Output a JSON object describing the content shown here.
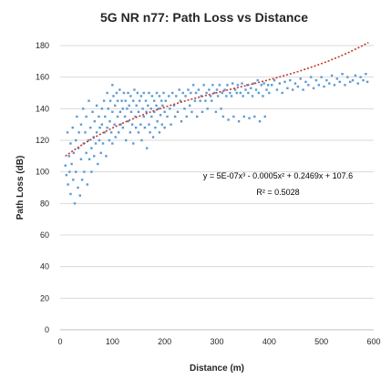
{
  "chart_data": {
    "type": "scatter",
    "title": "5G NR n77: Path Loss vs Distance",
    "xlabel": "Distance (m)",
    "ylabel": "Path Loss (dB)",
    "xlim": [
      0,
      600
    ],
    "ylim": [
      0,
      180
    ],
    "xticks": [
      0,
      100,
      200,
      300,
      400,
      500,
      600
    ],
    "yticks": [
      0,
      20,
      40,
      60,
      80,
      100,
      120,
      140,
      160,
      180
    ],
    "xtick_labels": [
      "0",
      "100",
      "200",
      "300",
      "400",
      "500",
      "600"
    ],
    "ytick_labels": [
      "0",
      "20",
      "40",
      "60",
      "80",
      "100",
      "120",
      "140",
      "160",
      "180"
    ],
    "grid": "horizontal",
    "legend": "none",
    "point_color": "#5b9bd5",
    "trend_color": "#c0392b",
    "series": [
      {
        "points": [
          [
            10,
            104
          ],
          [
            12,
            98
          ],
          [
            14,
            125
          ],
          [
            15,
            92
          ],
          [
            17,
            110
          ],
          [
            18,
            100
          ],
          [
            20,
            86
          ],
          [
            20,
            118
          ],
          [
            22,
            105
          ],
          [
            24,
            128
          ],
          [
            25,
            95
          ],
          [
            26,
            112
          ],
          [
            28,
            80
          ],
          [
            30,
            120
          ],
          [
            30,
            100
          ],
          [
            32,
            135
          ],
          [
            34,
            90
          ],
          [
            35,
            115
          ],
          [
            36,
            125
          ],
          [
            38,
            85
          ],
          [
            40,
            108
          ],
          [
            40,
            130
          ],
          [
            42,
            95
          ],
          [
            44,
            140
          ],
          [
            45,
            118
          ],
          [
            46,
            100
          ],
          [
            48,
            125
          ],
          [
            50,
            112
          ],
          [
            50,
            135
          ],
          [
            52,
            92
          ],
          [
            54,
            120
          ],
          [
            55,
            145
          ],
          [
            56,
            108
          ],
          [
            58,
            128
          ],
          [
            60,
            115
          ],
          [
            60,
            100
          ],
          [
            62,
            138
          ],
          [
            64,
            122
          ],
          [
            65,
            110
          ],
          [
            66,
            132
          ],
          [
            68,
            118
          ],
          [
            70,
            142
          ],
          [
            70,
            125
          ],
          [
            72,
            105
          ],
          [
            74,
            135
          ],
          [
            75,
            120
          ],
          [
            76,
            128
          ],
          [
            78,
            112
          ],
          [
            80,
            140
          ],
          [
            80,
            130
          ],
          [
            82,
            118
          ],
          [
            84,
            145
          ],
          [
            85,
            125
          ],
          [
            86,
            135
          ],
          [
            88,
            110
          ],
          [
            90,
            150
          ],
          [
            90,
            128
          ],
          [
            92,
            140
          ],
          [
            94,
            120
          ],
          [
            95,
            132
          ],
          [
            96,
            145
          ],
          [
            98,
            125
          ],
          [
            100,
            155
          ],
          [
            100,
            138
          ],
          [
            100,
            118
          ],
          [
            102,
            148
          ],
          [
            104,
            130
          ],
          [
            105,
            142
          ],
          [
            106,
            122
          ],
          [
            108,
            150
          ],
          [
            110,
            135
          ],
          [
            110,
            145
          ],
          [
            112,
            125
          ],
          [
            114,
            152
          ],
          [
            115,
            138
          ],
          [
            116,
            130
          ],
          [
            118,
            145
          ],
          [
            120,
            140
          ],
          [
            120,
            128
          ],
          [
            122,
            150
          ],
          [
            124,
            135
          ],
          [
            125,
            145
          ],
          [
            126,
            120
          ],
          [
            128,
            140
          ],
          [
            130,
            132
          ],
          [
            130,
            150
          ],
          [
            132,
            142
          ],
          [
            134,
            125
          ],
          [
            135,
            148
          ],
          [
            136,
            138
          ],
          [
            138,
            130
          ],
          [
            140,
            145
          ],
          [
            140,
            118
          ],
          [
            142,
            152
          ],
          [
            144,
            135
          ],
          [
            145,
            128
          ],
          [
            146,
            142
          ],
          [
            148,
            150
          ],
          [
            150,
            138
          ],
          [
            150,
            125
          ],
          [
            152,
            145
          ],
          [
            154,
            130
          ],
          [
            155,
            148
          ],
          [
            156,
            120
          ],
          [
            158,
            140
          ],
          [
            160,
            135
          ],
          [
            160,
            150
          ],
          [
            162,
            128
          ],
          [
            164,
            145
          ],
          [
            165,
            138
          ],
          [
            166,
            115
          ],
          [
            168,
            142
          ],
          [
            170,
            130
          ],
          [
            170,
            150
          ],
          [
            172,
            125
          ],
          [
            174,
            140
          ],
          [
            175,
            135
          ],
          [
            176,
            148
          ],
          [
            178,
            122
          ],
          [
            180,
            138
          ],
          [
            180,
            145
          ],
          [
            182,
            128
          ],
          [
            184,
            142
          ],
          [
            185,
            150
          ],
          [
            186,
            132
          ],
          [
            188,
            140
          ],
          [
            190,
            125
          ],
          [
            190,
            148
          ],
          [
            192,
            136
          ],
          [
            194,
            145
          ],
          [
            195,
            130
          ],
          [
            196,
            142
          ],
          [
            198,
            150
          ],
          [
            200,
            138
          ],
          [
            200,
            128
          ],
          [
            202,
            145
          ],
          [
            205,
            135
          ],
          [
            208,
            148
          ],
          [
            210,
            140
          ],
          [
            212,
            130
          ],
          [
            215,
            150
          ],
          [
            218,
            142
          ],
          [
            220,
            135
          ],
          [
            222,
            148
          ],
          [
            225,
            138
          ],
          [
            228,
            152
          ],
          [
            230,
            145
          ],
          [
            232,
            132
          ],
          [
            235,
            150
          ],
          [
            238,
            140
          ],
          [
            240,
            148
          ],
          [
            242,
            135
          ],
          [
            245,
            152
          ],
          [
            248,
            142
          ],
          [
            250,
            150
          ],
          [
            252,
            138
          ],
          [
            255,
            155
          ],
          [
            258,
            145
          ],
          [
            260,
            150
          ],
          [
            262,
            135
          ],
          [
            265,
            152
          ],
          [
            268,
            145
          ],
          [
            270,
            148
          ],
          [
            272,
            138
          ],
          [
            275,
            155
          ],
          [
            278,
            145
          ],
          [
            280,
            150
          ],
          [
            282,
            140
          ],
          [
            285,
            152
          ],
          [
            288,
            148
          ],
          [
            290,
            145
          ],
          [
            292,
            155
          ],
          [
            295,
            150
          ],
          [
            298,
            138
          ],
          [
            300,
            152
          ],
          [
            302,
            148
          ],
          [
            305,
            155
          ],
          [
            308,
            140
          ],
          [
            310,
            150
          ],
          [
            312,
            135
          ],
          [
            315,
            152
          ],
          [
            318,
            148
          ],
          [
            320,
            155
          ],
          [
            322,
            133
          ],
          [
            325,
            150
          ],
          [
            328,
            148
          ],
          [
            330,
            156
          ],
          [
            332,
            135
          ],
          [
            335,
            152
          ],
          [
            338,
            150
          ],
          [
            340,
            155
          ],
          [
            342,
            132
          ],
          [
            345,
            150
          ],
          [
            348,
            156
          ],
          [
            350,
            148
          ],
          [
            352,
            135
          ],
          [
            355,
            152
          ],
          [
            358,
            155
          ],
          [
            360,
            150
          ],
          [
            362,
            134
          ],
          [
            365,
            153
          ],
          [
            368,
            148
          ],
          [
            370,
            156
          ],
          [
            372,
            135
          ],
          [
            375,
            152
          ],
          [
            378,
            158
          ],
          [
            380,
            150
          ],
          [
            382,
            132
          ],
          [
            385,
            155
          ],
          [
            388,
            148
          ],
          [
            390,
            156
          ],
          [
            392,
            135
          ],
          [
            395,
            152
          ],
          [
            398,
            155
          ],
          [
            400,
            150
          ],
          [
            405,
            155
          ],
          [
            410,
            158
          ],
          [
            415,
            152
          ],
          [
            420,
            156
          ],
          [
            425,
            150
          ],
          [
            430,
            157
          ],
          [
            435,
            153
          ],
          [
            440,
            158
          ],
          [
            445,
            152
          ],
          [
            450,
            156
          ],
          [
            455,
            154
          ],
          [
            460,
            159
          ],
          [
            465,
            152
          ],
          [
            470,
            157
          ],
          [
            475,
            155
          ],
          [
            480,
            160
          ],
          [
            485,
            153
          ],
          [
            490,
            158
          ],
          [
            495,
            155
          ],
          [
            500,
            160
          ],
          [
            505,
            154
          ],
          [
            510,
            158
          ],
          [
            515,
            156
          ],
          [
            520,
            161
          ],
          [
            525,
            155
          ],
          [
            530,
            159
          ],
          [
            535,
            157
          ],
          [
            540,
            162
          ],
          [
            545,
            155
          ],
          [
            550,
            160
          ],
          [
            555,
            157
          ],
          [
            560,
            158
          ],
          [
            565,
            161
          ],
          [
            570,
            156
          ],
          [
            575,
            160
          ],
          [
            580,
            158
          ],
          [
            585,
            162
          ],
          [
            588,
            157
          ]
        ]
      }
    ],
    "trendline": {
      "type": "polynomial",
      "order": 3,
      "coefficients": [
        5e-07,
        -0.0005,
        0.2469,
        107.6
      ],
      "x_range": [
        10,
        590
      ],
      "equation": "y = 5E-07x³ - 0.0005x² + 0.2469x + 107.6",
      "r_squared": "R² = 0.5028"
    }
  }
}
